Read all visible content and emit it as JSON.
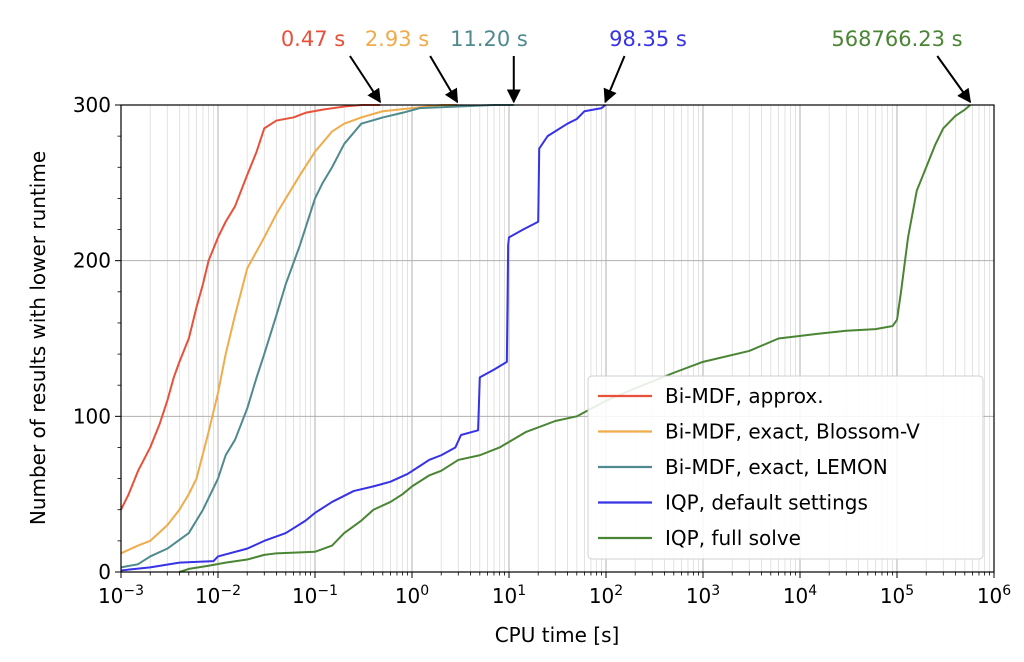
{
  "chart_data": {
    "type": "line",
    "title": "",
    "xlabel": "CPU time [s]",
    "ylabel": "Number of results with lower runtime",
    "x_scale": "log",
    "xlim": [
      0.001,
      1000000
    ],
    "ylim": [
      0,
      300
    ],
    "grid": true,
    "legend_position": "lower-right",
    "x_ticks": [
      {
        "base": "10",
        "exp": "−3"
      },
      {
        "base": "10",
        "exp": "−2"
      },
      {
        "base": "10",
        "exp": "−1"
      },
      {
        "base": "10",
        "exp": "0"
      },
      {
        "base": "10",
        "exp": "1"
      },
      {
        "base": "10",
        "exp": "2"
      },
      {
        "base": "10",
        "exp": "3"
      },
      {
        "base": "10",
        "exp": "4"
      },
      {
        "base": "10",
        "exp": "5"
      },
      {
        "base": "10",
        "exp": "6"
      }
    ],
    "y_ticks": [
      "0",
      "100",
      "200",
      "300"
    ],
    "series": [
      {
        "name": "Bi-MDF, approx.",
        "color": "#e8503a",
        "max_label": "0.47 s",
        "points": [
          [
            0.001,
            40
          ],
          [
            0.0012,
            50
          ],
          [
            0.0015,
            65
          ],
          [
            0.002,
            80
          ],
          [
            0.0025,
            95
          ],
          [
            0.003,
            110
          ],
          [
            0.0035,
            125
          ],
          [
            0.004,
            135
          ],
          [
            0.005,
            150
          ],
          [
            0.006,
            170
          ],
          [
            0.007,
            185
          ],
          [
            0.008,
            200
          ],
          [
            0.01,
            215
          ],
          [
            0.012,
            225
          ],
          [
            0.015,
            235
          ],
          [
            0.02,
            255
          ],
          [
            0.025,
            270
          ],
          [
            0.03,
            285
          ],
          [
            0.04,
            290
          ],
          [
            0.06,
            292
          ],
          [
            0.08,
            295
          ],
          [
            0.12,
            297
          ],
          [
            0.2,
            299
          ],
          [
            0.3,
            300
          ],
          [
            0.47,
            300
          ]
        ]
      },
      {
        "name": "Bi-MDF, exact, Blossom-V",
        "color": "#f0ab4b",
        "max_label": "2.93 s",
        "points": [
          [
            0.001,
            12
          ],
          [
            0.0015,
            17
          ],
          [
            0.002,
            20
          ],
          [
            0.003,
            30
          ],
          [
            0.004,
            40
          ],
          [
            0.005,
            50
          ],
          [
            0.006,
            60
          ],
          [
            0.008,
            90
          ],
          [
            0.01,
            115
          ],
          [
            0.012,
            140
          ],
          [
            0.015,
            165
          ],
          [
            0.02,
            195
          ],
          [
            0.03,
            215
          ],
          [
            0.04,
            230
          ],
          [
            0.05,
            240
          ],
          [
            0.07,
            255
          ],
          [
            0.1,
            270
          ],
          [
            0.15,
            283
          ],
          [
            0.2,
            288
          ],
          [
            0.3,
            292
          ],
          [
            0.5,
            296
          ],
          [
            1,
            298
          ],
          [
            2,
            300
          ],
          [
            2.93,
            300
          ]
        ]
      },
      {
        "name": "Bi-MDF, exact, LEMON",
        "color": "#4e8a8e",
        "max_label": "11.20 s",
        "points": [
          [
            0.001,
            3
          ],
          [
            0.0015,
            5
          ],
          [
            0.002,
            10
          ],
          [
            0.003,
            15
          ],
          [
            0.005,
            25
          ],
          [
            0.007,
            40
          ],
          [
            0.01,
            60
          ],
          [
            0.012,
            75
          ],
          [
            0.015,
            85
          ],
          [
            0.02,
            105
          ],
          [
            0.025,
            125
          ],
          [
            0.03,
            140
          ],
          [
            0.04,
            165
          ],
          [
            0.05,
            185
          ],
          [
            0.07,
            210
          ],
          [
            0.1,
            240
          ],
          [
            0.12,
            250
          ],
          [
            0.15,
            260
          ],
          [
            0.2,
            275
          ],
          [
            0.3,
            288
          ],
          [
            0.5,
            292
          ],
          [
            0.8,
            295
          ],
          [
            1.2,
            298
          ],
          [
            3,
            299
          ],
          [
            7,
            300
          ],
          [
            11.2,
            300
          ]
        ]
      },
      {
        "name": "IQP, default settings",
        "color": "#3633e6",
        "max_label": "98.35 s",
        "points": [
          [
            0.001,
            1
          ],
          [
            0.002,
            3
          ],
          [
            0.004,
            6
          ],
          [
            0.009,
            7
          ],
          [
            0.01,
            10
          ],
          [
            0.02,
            15
          ],
          [
            0.03,
            20
          ],
          [
            0.05,
            25
          ],
          [
            0.08,
            33
          ],
          [
            0.1,
            38
          ],
          [
            0.15,
            45
          ],
          [
            0.25,
            52
          ],
          [
            0.4,
            55
          ],
          [
            0.6,
            58
          ],
          [
            0.9,
            63
          ],
          [
            1.2,
            68
          ],
          [
            1.5,
            72
          ],
          [
            2,
            75
          ],
          [
            2.8,
            80
          ],
          [
            3.2,
            88
          ],
          [
            4.8,
            91
          ],
          [
            5,
            125
          ],
          [
            7,
            130
          ],
          [
            9.5,
            135
          ],
          [
            9.8,
            210
          ],
          [
            10,
            215
          ],
          [
            14,
            220
          ],
          [
            20,
            225
          ],
          [
            20.5,
            272
          ],
          [
            25,
            280
          ],
          [
            40,
            288
          ],
          [
            50,
            291
          ],
          [
            60,
            296
          ],
          [
            90,
            298
          ],
          [
            98.35,
            300
          ]
        ]
      },
      {
        "name": "IQP, full solve",
        "color": "#4a8534",
        "max_label": "568766.23 s",
        "points": [
          [
            0.004,
            0
          ],
          [
            0.005,
            2
          ],
          [
            0.008,
            4
          ],
          [
            0.012,
            6
          ],
          [
            0.02,
            8
          ],
          [
            0.03,
            11
          ],
          [
            0.04,
            12
          ],
          [
            0.1,
            13
          ],
          [
            0.15,
            17
          ],
          [
            0.2,
            25
          ],
          [
            0.3,
            33
          ],
          [
            0.4,
            40
          ],
          [
            0.6,
            45
          ],
          [
            0.8,
            50
          ],
          [
            1,
            55
          ],
          [
            1.5,
            62
          ],
          [
            2,
            65
          ],
          [
            3,
            72
          ],
          [
            5,
            75
          ],
          [
            8,
            80
          ],
          [
            15,
            90
          ],
          [
            30,
            97
          ],
          [
            50,
            100
          ],
          [
            100,
            110
          ],
          [
            200,
            118
          ],
          [
            500,
            128
          ],
          [
            1000,
            135
          ],
          [
            3000,
            142
          ],
          [
            6000,
            150
          ],
          [
            15000,
            153
          ],
          [
            30000,
            155
          ],
          [
            60000,
            156
          ],
          [
            90000,
            158
          ],
          [
            100000,
            162
          ],
          [
            110000,
            180
          ],
          [
            130000,
            215
          ],
          [
            160000,
            245
          ],
          [
            200000,
            260
          ],
          [
            250000,
            275
          ],
          [
            300000,
            285
          ],
          [
            400000,
            293
          ],
          [
            500000,
            297
          ],
          [
            568766.23,
            300
          ]
        ]
      }
    ]
  }
}
